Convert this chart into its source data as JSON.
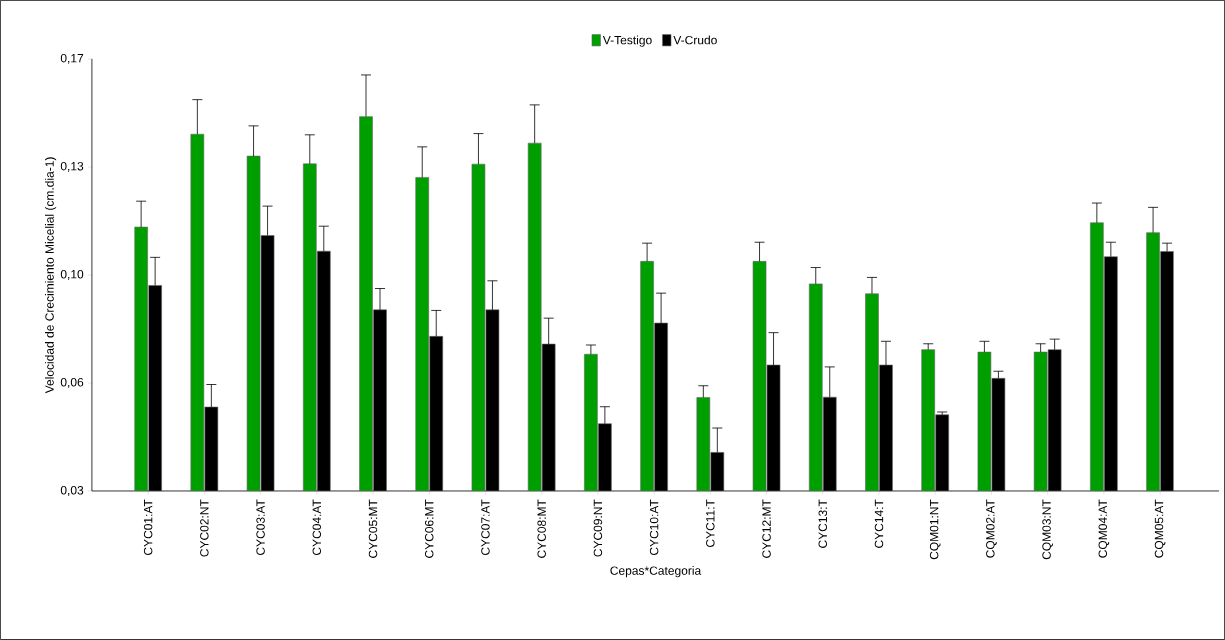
{
  "chart_data": {
    "type": "bar",
    "xlabel": "Cepas*Categoria",
    "ylabel": "Velocidad de Crecimiento Micelial (cm.dia-1)",
    "categories": [
      "CYC01:AT",
      "CYC02:NT",
      "CYC03:AT",
      "CYC04:AT",
      "CYC05:MT",
      "CYC06:MT",
      "CYC07:AT",
      "CYC08:MT",
      "CYC09:NT",
      "CYC10:AT",
      "CYC11:T",
      "CYC12:MT",
      "CYC13:T",
      "CYC14:T",
      "CQM01:NT",
      "CQM02:AT",
      "CQM03:NT",
      "CQM04:AT",
      "CQM05:AT"
    ],
    "series": [
      {
        "name": "V-Testigo",
        "color": "#009f00",
        "values": [
          0.1155,
          0.1456,
          0.1385,
          0.136,
          0.1513,
          0.1316,
          0.1359,
          0.1427,
          0.0743,
          0.1044,
          0.0603,
          0.1044,
          0.0971,
          0.0939,
          0.0758,
          0.075,
          0.075,
          0.1169,
          0.1137
        ],
        "errors": [
          [
            0.1155,
            0.1239
          ],
          [
            0.1456,
            0.1568
          ],
          [
            0.1385,
            0.1483
          ],
          [
            0.136,
            0.1454
          ],
          [
            0.1513,
            0.1648
          ],
          [
            0.1316,
            0.1415
          ],
          [
            0.1359,
            0.1458
          ],
          [
            0.1427,
            0.1551
          ],
          [
            0.0743,
            0.0773
          ],
          [
            0.1044,
            0.1103
          ],
          [
            0.0603,
            0.0641
          ],
          [
            0.1044,
            0.1106
          ],
          [
            0.0971,
            0.1024
          ],
          [
            0.0939,
            0.0992
          ],
          [
            0.0758,
            0.0777
          ],
          [
            0.075,
            0.0785
          ],
          [
            0.075,
            0.0777
          ],
          [
            0.1169,
            0.1233
          ],
          [
            0.1137,
            0.1219
          ]
        ]
      },
      {
        "name": "V-Crudo",
        "color": "#000000",
        "values": [
          0.0966,
          0.0572,
          0.1128,
          0.1077,
          0.0887,
          0.0801,
          0.0887,
          0.0776,
          0.0518,
          0.0844,
          0.0425,
          0.0708,
          0.0604,
          0.0708,
          0.0547,
          0.0665,
          0.0758,
          0.1059,
          0.1076
        ],
        "errors": [
          [
            0.0966,
            0.1057
          ],
          [
            0.0572,
            0.0645
          ],
          [
            0.1128,
            0.1223
          ],
          [
            0.1077,
            0.1158
          ],
          [
            0.0887,
            0.0956
          ],
          [
            0.0801,
            0.0885
          ],
          [
            0.0887,
            0.0981
          ],
          [
            0.0776,
            0.086
          ],
          [
            0.0518,
            0.0573
          ],
          [
            0.0844,
            0.0941
          ],
          [
            0.0425,
            0.0504
          ],
          [
            0.0708,
            0.0813
          ],
          [
            0.0604,
            0.0702
          ],
          [
            0.0708,
            0.0785
          ],
          [
            0.0547,
            0.0556
          ],
          [
            0.0665,
            0.0688
          ],
          [
            0.0758,
            0.0792
          ],
          [
            0.1059,
            0.1106
          ],
          [
            0.1076,
            0.1103
          ]
        ]
      }
    ],
    "ylim": [
      0.03,
      0.17
    ],
    "yticks": [
      {
        "value": 0.03,
        "label": "0,03"
      },
      {
        "value": 0.065,
        "label": "0,06"
      },
      {
        "value": 0.1,
        "label": "0,10"
      },
      {
        "value": 0.135,
        "label": "0,13"
      },
      {
        "value": 0.17,
        "label": "0,17"
      }
    ],
    "grid": false,
    "legend": "top"
  }
}
